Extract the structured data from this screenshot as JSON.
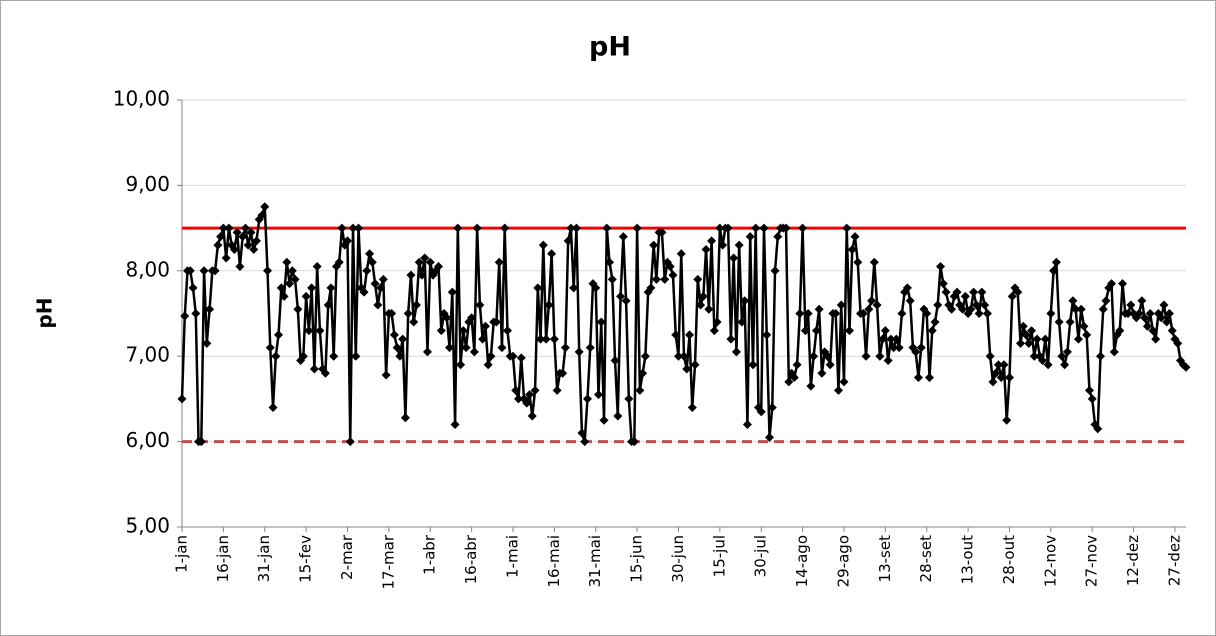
{
  "chart_data": {
    "type": "line",
    "title": "pH",
    "y_label": "pH",
    "categories": [
      "1-jan",
      null,
      null,
      null,
      null,
      null,
      null,
      null,
      null,
      null,
      null,
      null,
      null,
      null,
      null,
      "16-jan",
      null,
      null,
      null,
      null,
      null,
      null,
      null,
      null,
      null,
      null,
      null,
      null,
      null,
      null,
      "31-jan",
      null,
      null,
      null,
      null,
      null,
      null,
      null,
      null,
      null,
      null,
      null,
      null,
      null,
      null,
      "15-fev",
      null,
      null,
      null,
      null,
      null,
      null,
      null,
      null,
      null,
      null,
      null,
      null,
      null,
      null,
      "2-mar",
      null,
      null,
      null,
      null,
      null,
      null,
      null,
      null,
      null,
      null,
      null,
      null,
      null,
      null,
      "17-mar",
      null,
      null,
      null,
      null,
      null,
      null,
      null,
      null,
      null,
      null,
      null,
      null,
      null,
      null,
      "1-abr",
      null,
      null,
      null,
      null,
      null,
      null,
      null,
      null,
      null,
      null,
      null,
      null,
      null,
      null,
      "16-abr",
      null,
      null,
      null,
      null,
      null,
      null,
      null,
      null,
      null,
      null,
      null,
      null,
      null,
      null,
      "1-mai",
      null,
      null,
      null,
      null,
      null,
      null,
      null,
      null,
      null,
      null,
      null,
      null,
      null,
      null,
      "16-mai",
      null,
      null,
      null,
      null,
      null,
      null,
      null,
      null,
      null,
      null,
      null,
      null,
      null,
      null,
      "31-mai",
      null,
      null,
      null,
      null,
      null,
      null,
      null,
      null,
      null,
      null,
      null,
      null,
      null,
      null,
      "15-jun",
      null,
      null,
      null,
      null,
      null,
      null,
      null,
      null,
      null,
      null,
      null,
      null,
      null,
      null,
      "30-jun",
      null,
      null,
      null,
      null,
      null,
      null,
      null,
      null,
      null,
      null,
      null,
      null,
      null,
      null,
      "15-jul",
      null,
      null,
      null,
      null,
      null,
      null,
      null,
      null,
      null,
      null,
      null,
      null,
      null,
      null,
      "30-jul",
      null,
      null,
      null,
      null,
      null,
      null,
      null,
      null,
      null,
      null,
      null,
      null,
      null,
      null,
      "14-ago",
      null,
      null,
      null,
      null,
      null,
      null,
      null,
      null,
      null,
      null,
      null,
      null,
      null,
      null,
      "29-ago",
      null,
      null,
      null,
      null,
      null,
      null,
      null,
      null,
      null,
      null,
      null,
      null,
      null,
      null,
      "13-set",
      null,
      null,
      null,
      null,
      null,
      null,
      null,
      null,
      null,
      null,
      null,
      null,
      null,
      null,
      "28-set",
      null,
      null,
      null,
      null,
      null,
      null,
      null,
      null,
      null,
      null,
      null,
      null,
      null,
      null,
      "13-out",
      null,
      null,
      null,
      null,
      null,
      null,
      null,
      null,
      null,
      null,
      null,
      null,
      null,
      null,
      "28-out",
      null,
      null,
      null,
      null,
      null,
      null,
      null,
      null,
      null,
      null,
      null,
      null,
      null,
      null,
      "12-nov",
      null,
      null,
      null,
      null,
      null,
      null,
      null,
      null,
      null,
      null,
      null,
      null,
      null,
      null,
      "27-nov",
      null,
      null,
      null,
      null,
      null,
      null,
      null,
      null,
      null,
      null,
      null,
      null,
      null,
      null,
      "12-dez",
      null,
      null,
      null,
      null,
      null,
      null,
      null,
      null,
      null,
      null,
      null,
      null,
      null,
      null,
      "27-dez",
      null,
      null,
      null,
      null
    ],
    "values": [
      6.5,
      7.47,
      8.0,
      8.0,
      7.8,
      7.5,
      6.0,
      6.0,
      8.0,
      7.15,
      7.55,
      8.0,
      8.0,
      8.3,
      8.4,
      8.5,
      8.15,
      8.5,
      8.3,
      8.25,
      8.45,
      8.05,
      8.4,
      8.5,
      8.3,
      8.45,
      8.25,
      8.35,
      8.6,
      8.65,
      8.75,
      8.0,
      7.1,
      6.4,
      7.0,
      7.25,
      7.8,
      7.7,
      8.1,
      7.85,
      8.0,
      7.9,
      7.55,
      6.95,
      7.0,
      7.7,
      7.3,
      7.8,
      6.85,
      8.05,
      7.3,
      6.85,
      6.8,
      7.6,
      7.8,
      7.0,
      8.05,
      8.1,
      8.5,
      8.3,
      8.35,
      6.0,
      8.5,
      7.0,
      8.5,
      7.8,
      7.75,
      8.0,
      8.2,
      8.1,
      7.85,
      7.6,
      7.8,
      7.9,
      6.78,
      7.5,
      7.5,
      7.25,
      7.1,
      7.0,
      7.2,
      6.28,
      7.5,
      7.95,
      7.4,
      7.6,
      8.1,
      7.95,
      8.15,
      7.05,
      8.1,
      7.95,
      8.0,
      8.05,
      7.3,
      7.5,
      7.45,
      7.1,
      7.75,
      6.2,
      8.5,
      6.9,
      7.3,
      7.1,
      7.4,
      7.45,
      7.05,
      8.5,
      7.6,
      7.2,
      7.35,
      6.9,
      7.0,
      7.4,
      7.4,
      8.1,
      7.1,
      8.5,
      7.3,
      7.0,
      7.0,
      6.6,
      6.5,
      6.98,
      6.5,
      6.45,
      6.55,
      6.3,
      6.6,
      7.8,
      7.2,
      8.3,
      7.2,
      7.6,
      8.2,
      7.2,
      6.6,
      6.8,
      6.8,
      7.1,
      8.35,
      8.5,
      7.8,
      8.5,
      7.05,
      6.1,
      6.0,
      6.5,
      7.1,
      7.85,
      7.8,
      6.55,
      7.4,
      6.25,
      8.5,
      8.1,
      7.9,
      6.95,
      6.3,
      7.7,
      8.4,
      7.65,
      6.5,
      6.0,
      6.0,
      8.5,
      6.6,
      6.8,
      7.0,
      7.75,
      7.8,
      8.3,
      7.9,
      8.45,
      8.45,
      7.9,
      8.1,
      8.05,
      7.95,
      7.25,
      7.0,
      8.2,
      7.0,
      6.85,
      7.25,
      6.4,
      6.9,
      7.9,
      7.6,
      7.7,
      8.25,
      7.55,
      8.35,
      7.3,
      7.4,
      8.5,
      8.3,
      8.5,
      8.5,
      7.2,
      8.15,
      7.05,
      8.3,
      7.4,
      7.65,
      6.2,
      8.4,
      6.9,
      8.5,
      6.4,
      6.35,
      8.5,
      7.25,
      6.05,
      6.4,
      8.0,
      8.4,
      8.5,
      8.5,
      8.5,
      6.7,
      6.8,
      6.75,
      6.9,
      7.5,
      8.5,
      7.3,
      7.5,
      6.65,
      7.0,
      7.3,
      7.55,
      6.8,
      7.05,
      7.0,
      6.9,
      7.5,
      7.5,
      6.6,
      7.6,
      6.7,
      8.5,
      7.3,
      8.25,
      8.4,
      8.1,
      7.5,
      7.5,
      7.0,
      7.55,
      7.65,
      8.1,
      7.6,
      7.0,
      7.2,
      7.3,
      6.95,
      7.2,
      7.1,
      7.2,
      7.1,
      7.5,
      7.75,
      7.8,
      7.65,
      7.1,
      7.05,
      6.75,
      7.1,
      7.55,
      7.5,
      6.75,
      7.3,
      7.4,
      7.6,
      8.05,
      7.85,
      7.75,
      7.6,
      7.55,
      7.7,
      7.75,
      7.6,
      7.55,
      7.7,
      7.5,
      7.55,
      7.75,
      7.6,
      7.5,
      7.75,
      7.6,
      7.5,
      7.0,
      6.7,
      6.8,
      6.9,
      6.75,
      6.9,
      6.25,
      6.75,
      7.7,
      7.8,
      7.75,
      7.15,
      7.35,
      7.25,
      7.15,
      7.3,
      7.0,
      7.2,
      7.0,
      6.95,
      7.2,
      6.9,
      7.5,
      8.0,
      8.1,
      7.4,
      7.0,
      6.9,
      7.05,
      7.4,
      7.65,
      7.55,
      7.2,
      7.55,
      7.35,
      7.25,
      6.6,
      6.5,
      6.2,
      6.15,
      7.0,
      7.55,
      7.65,
      7.8,
      7.85,
      7.05,
      7.25,
      7.3,
      7.85,
      7.5,
      7.5,
      7.6,
      7.5,
      7.45,
      7.5,
      7.65,
      7.45,
      7.35,
      7.5,
      7.3,
      7.2,
      7.5,
      7.45,
      7.6,
      7.4,
      7.5,
      7.3,
      7.2,
      7.15,
      6.95,
      6.9,
      6.87
    ],
    "color": "#000000",
    "reference_lines": [
      {
        "value": 8.5,
        "color": "#ff0000",
        "style": "solid"
      },
      {
        "value": 6,
        "color": "#c0504d",
        "style": "dashed"
      }
    ],
    "ylim": [
      5,
      10
    ],
    "yticks": [
      {
        "value": 5,
        "label": "5,00"
      },
      {
        "value": 6,
        "label": "6,00"
      },
      {
        "value": 7,
        "label": "7,00"
      },
      {
        "value": 8,
        "label": "8,00"
      },
      {
        "value": 9,
        "label": "9,00"
      },
      {
        "value": 10,
        "label": "10,00"
      }
    ],
    "grid": true
  }
}
